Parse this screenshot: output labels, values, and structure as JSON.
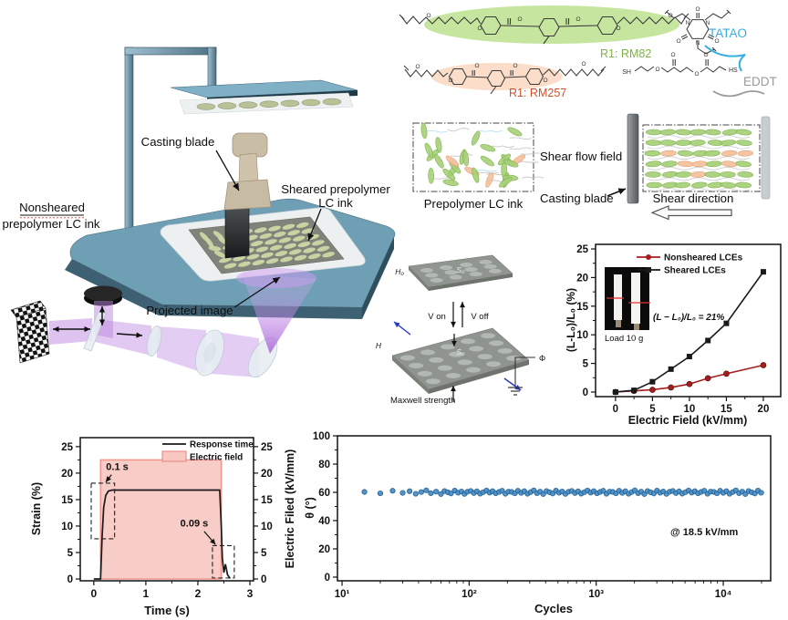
{
  "figure_labels": {
    "apparatus": {
      "casting_blade": "Casting blade",
      "sheared_line1": "Sheared prepolymer",
      "sheared_line2": "LC ink",
      "nonsheared_line1": "Nonsheared",
      "nonsheared_line2": "prepolymer LC ink",
      "projected_image": "Projected image"
    },
    "chemistry": {
      "rm82": "R1: RM82",
      "rm257": "R1: RM257",
      "tatao": "TATAO",
      "eddt": "EDDT",
      "atom_o": "O",
      "atom_n": "N",
      "atom_sh": "SH",
      "atom_hs": "HS",
      "colors": {
        "rm82_text": "#7cb342",
        "rm82_fill": "#bce18e",
        "rm257_text": "#d0512a",
        "rm257_fill": "#fbd9c3",
        "tatao": "#35aee2",
        "eddt": "#9a9a9a"
      }
    },
    "shear_panels": {
      "left_caption": "Prepolymer LC ink",
      "flow": "Shear flow field",
      "blade": "Casting blade",
      "direction": "Shear direction"
    },
    "actuation": {
      "h0": "H₀",
      "s0": "S₀",
      "v_on": "V on",
      "v_off": "V off",
      "s_bottom": "S₀",
      "h": "H",
      "maxwell": "Maxwell strength",
      "phi": "Φ"
    }
  },
  "chart_data": [
    {
      "id": "field_response",
      "type": "line",
      "xlabel": "Electric Field (kV/mm)",
      "ylabel": "(L-L₀)/L₀ (%)",
      "xlim": [
        -2.7,
        22.35
      ],
      "ylim": [
        -0.8,
        25.8
      ],
      "xticks": [
        0,
        5,
        10,
        15,
        20
      ],
      "xticks_minor": [
        2.5,
        7.5,
        12.5,
        17.5
      ],
      "yticks": [
        0,
        5,
        10,
        15,
        20,
        25
      ],
      "grid": false,
      "legend_position": "top-right-inside",
      "x": [
        0,
        2.5,
        5,
        7.5,
        10,
        12.5,
        15,
        20
      ],
      "series": [
        {
          "name": "Nonsheared LCEs",
          "color": "#a51d1d",
          "marker": "circle",
          "values": [
            0,
            0.2,
            0.4,
            0.8,
            1.4,
            2.4,
            3.2,
            4.7
          ]
        },
        {
          "name": "Sheared LCEs",
          "color": "#1a1a1a",
          "marker": "square",
          "values": [
            0,
            0.3,
            1.8,
            4.0,
            6.2,
            9.0,
            12.0,
            21.0
          ]
        }
      ],
      "annotation": "(L − L₀)/L₀ = 21%",
      "inset_caption": "Load 10 g"
    },
    {
      "id": "time_response",
      "type": "area-line",
      "xlabel": "Time (s)",
      "ylabel_left": "Strain (%)",
      "ylabel_right": "Electric Filed (kV/mm)",
      "xlim": [
        -0.26,
        3.07
      ],
      "ylim": [
        -0.34,
        26.7
      ],
      "xticks": [
        0,
        1,
        2,
        3
      ],
      "yticks": [
        0,
        5,
        10,
        15,
        20,
        25
      ],
      "electric_field": {
        "name": "Electric field",
        "fill": "#f8c8c3",
        "stroke": "#ee8e85",
        "x": [
          0.13,
          0.13,
          2.45,
          2.45
        ],
        "y": [
          0,
          22.5,
          22.5,
          0
        ]
      },
      "strain": {
        "name": "Response time",
        "color": "#1a1a1a",
        "points": [
          [
            0,
            0
          ],
          [
            0.13,
            0
          ],
          [
            0.16,
            8
          ],
          [
            0.19,
            13.5
          ],
          [
            0.23,
            15.8
          ],
          [
            0.28,
            16.6
          ],
          [
            0.35,
            16.8
          ],
          [
            2.42,
            16.8
          ],
          [
            2.45,
            10
          ],
          [
            2.47,
            4
          ],
          [
            2.5,
            1.2
          ],
          [
            2.53,
            2.8
          ],
          [
            2.57,
            0.8
          ],
          [
            2.62,
            0.1
          ]
        ]
      },
      "rise_time_label": "0.1 s",
      "fall_time_label": "0.09 s",
      "dash_boxes": [
        {
          "x0": -0.05,
          "x1": 0.4,
          "y0": 7.6,
          "y1": 18.1
        },
        {
          "x0": 2.28,
          "x1": 2.7,
          "y0": 0.2,
          "y1": 6.3
        }
      ]
    },
    {
      "id": "cycling",
      "type": "scatter",
      "xlabel": "Cycles",
      "ylabel": "θ (°)",
      "xscale": "log",
      "xlim": [
        9.2,
        23600
      ],
      "ylim": [
        -2.6,
        100
      ],
      "xticks": [
        10,
        100,
        1000,
        10000
      ],
      "xtick_labels": [
        "10¹",
        "10²",
        "10³",
        "10⁴"
      ],
      "yticks": [
        0,
        20,
        40,
        60,
        80,
        100
      ],
      "annotation": "@ 18.5 kV/mm",
      "marker_color": "#4a8ec2",
      "marker_edge": "#1f5d96",
      "x": [
        15,
        20,
        25,
        30,
        34,
        38,
        42,
        46,
        50,
        55,
        60,
        64,
        68,
        72,
        77,
        82,
        87,
        92,
        97,
        103,
        109,
        115,
        122,
        129,
        137,
        145,
        153,
        162,
        172,
        182,
        193,
        204,
        216,
        229,
        242,
        257,
        272,
        288,
        305,
        323,
        342,
        362,
        383,
        406,
        430,
        455,
        482,
        510,
        540,
        572,
        606,
        642,
        680,
        720,
        762,
        807,
        854,
        904,
        957,
        1014,
        1074,
        1137,
        1204,
        1275,
        1350,
        1430,
        1514,
        1603,
        1697,
        1797,
        1903,
        2015,
        2134,
        2260,
        2393,
        2534,
        2683,
        2841,
        3008,
        3185,
        3373,
        3571,
        3781,
        4004,
        4240,
        4490,
        4754,
        5034,
        5330,
        5644,
        5976,
        6328,
        6700,
        7095,
        7512,
        7954,
        8423,
        8919,
        9444,
        10000,
        10589,
        11212,
        11872,
        12571,
        13311,
        14094,
        14924,
        15803,
        16733,
        17718,
        18761,
        19865
      ],
      "y": [
        60.3,
        59.3,
        61.1,
        59.6,
        60.8,
        59.0,
        60.2,
        61.4,
        59.4,
        60.5,
        58.8,
        60.9,
        60.0,
        59.2,
        61.2,
        59.7,
        60.6,
        58.9,
        60.4,
        61.0,
        59.5,
        60.7,
        59.1,
        60.1,
        61.3,
        59.8,
        60.8,
        59.3,
        60.3,
        61.1,
        59.0,
        60.5,
        60.3,
        59.3,
        61.1,
        59.6,
        60.8,
        59.0,
        60.2,
        61.4,
        59.4,
        60.5,
        58.8,
        60.9,
        60.0,
        59.2,
        61.2,
        59.7,
        60.6,
        58.9,
        60.4,
        61.0,
        59.5,
        60.7,
        59.1,
        60.1,
        61.3,
        59.8,
        60.8,
        59.3,
        60.3,
        61.1,
        59.0,
        60.5,
        60.3,
        59.3,
        61.1,
        59.6,
        60.8,
        59.0,
        60.2,
        61.4,
        59.4,
        60.5,
        58.8,
        60.9,
        60.0,
        59.2,
        61.2,
        59.7,
        60.6,
        58.9,
        60.4,
        61.0,
        59.5,
        60.7,
        59.1,
        60.1,
        61.3,
        59.8,
        60.8,
        59.3,
        60.3,
        61.1,
        59.0,
        60.5,
        60.3,
        59.3,
        61.1,
        59.6,
        60.8,
        59.0,
        60.2,
        61.4,
        59.4,
        60.5,
        58.8,
        60.9,
        60.0,
        59.2,
        61.2,
        59.7
      ]
    }
  ]
}
